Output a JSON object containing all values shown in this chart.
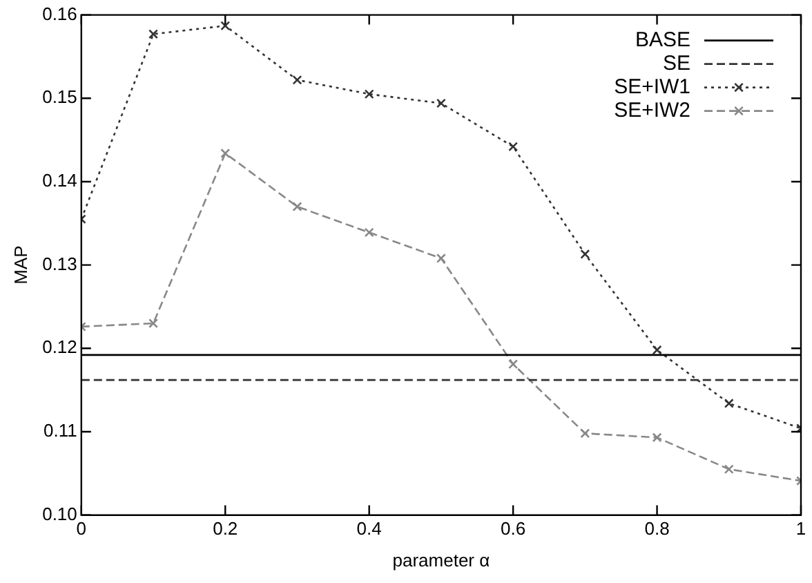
{
  "chart_data": {
    "type": "line",
    "xlabel": "parameter α",
    "ylabel": "MAP",
    "x": [
      0,
      0.1,
      0.2,
      0.3,
      0.4,
      0.5,
      0.6,
      0.7,
      0.8,
      0.9,
      1
    ],
    "series": [
      {
        "name": "BASE",
        "color": "#000000",
        "line_style": "solid",
        "marker": "none",
        "values": [
          0.1192,
          0.1192,
          0.1192,
          0.1192,
          0.1192,
          0.1192,
          0.1192,
          0.1192,
          0.1192,
          0.1192,
          0.1192
        ]
      },
      {
        "name": "SE",
        "color": "#333333",
        "line_style": "dashed",
        "marker": "none",
        "values": [
          0.1162,
          0.1162,
          0.1162,
          0.1162,
          0.1162,
          0.1162,
          0.1162,
          0.1162,
          0.1162,
          0.1162,
          0.1162
        ]
      },
      {
        "name": "SE+IW1",
        "color": "#333333",
        "line_style": "dotted",
        "marker": "cross",
        "values": [
          0.1355,
          0.1577,
          0.1587,
          0.1522,
          0.1505,
          0.1494,
          0.1442,
          0.1313,
          0.1198,
          0.1134,
          0.1104
        ]
      },
      {
        "name": "SE+IW2",
        "color": "#888888",
        "line_style": "dashed",
        "marker": "cross",
        "values": [
          0.1226,
          0.123,
          0.1434,
          0.137,
          0.1339,
          0.1308,
          0.1181,
          0.1098,
          0.1093,
          0.1055,
          0.1041
        ]
      }
    ],
    "xlim": [
      0,
      1
    ],
    "xticks": [
      0,
      0.2,
      0.4,
      0.6,
      0.8,
      1
    ],
    "ylim": [
      0.1,
      0.16
    ],
    "yticks": [
      {
        "value": 0.1,
        "label": "0.10"
      },
      {
        "value": 0.11,
        "label": "0.11"
      },
      {
        "value": 0.12,
        "label": "0.12"
      },
      {
        "value": 0.13,
        "label": "0.13"
      },
      {
        "value": 0.14,
        "label": "0.14"
      },
      {
        "value": 0.15,
        "label": "0.15"
      },
      {
        "value": 0.16,
        "label": "0.16"
      }
    ],
    "grid": false,
    "legend": "top right"
  }
}
